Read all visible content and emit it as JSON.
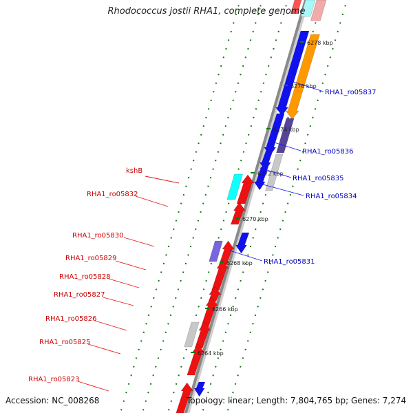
{
  "map": {
    "title": "Rhodococcus jostii RHA1, complete genome",
    "accession": "Accession: NC_008268",
    "topology": "Topology: linear; Length: 7,804,765 bp; Genes: 7,274"
  },
  "axis_ticks": [
    "6264 kbp",
    "6266 kbp",
    "6268 kbp",
    "6270 kbp",
    "6272 kbp",
    "6274 kbp",
    "6276 kbp",
    "6278 kbp"
  ],
  "colors": {
    "red": "#ee1111",
    "blue": "#1111ee",
    "orange": "#ff9900",
    "purple": "#7766dd",
    "dark_purple": "#554499",
    "cyan": "#11ffff",
    "grey": "#c8c8c8",
    "red_label": "#cc0000",
    "blue_label": "#0000bb"
  },
  "genes_minus": [
    {
      "label": "kshB",
      "color": "cyan"
    },
    {
      "label": "RHA1_ro05832",
      "color": "red"
    },
    {
      "label": "RHA1_ro05830",
      "color": "purple"
    },
    {
      "label": "RHA1_ro05829",
      "color": "red"
    },
    {
      "label": "RHA1_ro05828",
      "color": "red"
    },
    {
      "label": "RHA1_ro05827",
      "color": "red"
    },
    {
      "label": "RHA1_ro05826",
      "color": "red"
    },
    {
      "label": "RHA1_ro05825",
      "color": "red"
    },
    {
      "label": "RHA1_ro05823",
      "color": "red"
    }
  ],
  "genes_plus": [
    {
      "label": "RHA1_ro05837",
      "color": "blue"
    },
    {
      "label": "RHA1_ro05836",
      "color": "blue"
    },
    {
      "label": "RHA1_ro05835",
      "color": "blue"
    },
    {
      "label": "RHA1_ro05834",
      "color": "blue"
    },
    {
      "label": "RHA1_ro05831",
      "color": "blue"
    }
  ]
}
